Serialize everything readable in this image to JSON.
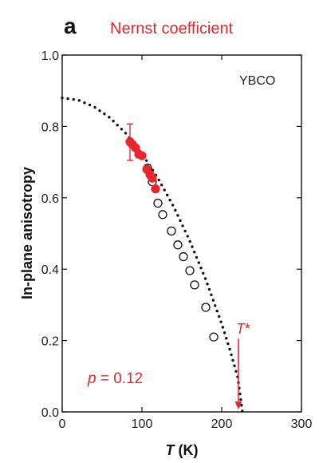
{
  "panel_label": "a",
  "title": "Nernst coefficient",
  "material_label": "YBCO",
  "doping_label": {
    "symbol": "p",
    "rest": " = 0.12"
  },
  "tstar_label": {
    "symbol": "T",
    "suffix": "*"
  },
  "xlabel": {
    "symbol": "T",
    "unit": " (K)"
  },
  "ylabel": "In-plane anisotropy",
  "colors": {
    "accent": "#e8262b",
    "axis": "#111111"
  },
  "chart_data": {
    "type": "scatter",
    "xlim": [
      0,
      300
    ],
    "ylim": [
      0.0,
      1.0
    ],
    "x_ticks": [
      0,
      100,
      200,
      300
    ],
    "x_tick_labels": [
      "0",
      "100",
      "200",
      "300"
    ],
    "y_ticks": [
      0.0,
      0.2,
      0.4,
      0.6,
      0.8,
      1.0
    ],
    "y_tick_labels": [
      "0.0",
      "0.2",
      "0.4",
      "0.6",
      "0.8",
      "1.0"
    ],
    "grid": false,
    "series": [
      {
        "style": "red-filled-circles",
        "x": [
          85,
          88,
          92,
          96,
          100,
          106,
          110,
          113,
          117
        ],
        "y": [
          0.757,
          0.75,
          0.74,
          0.722,
          0.718,
          0.68,
          0.665,
          0.655,
          0.625
        ]
      },
      {
        "style": "open-circles",
        "x": [
          107,
          113,
          120,
          126,
          137,
          145,
          152,
          160,
          166,
          180,
          190
        ],
        "y": [
          0.683,
          0.645,
          0.585,
          0.553,
          0.507,
          0.468,
          0.435,
          0.396,
          0.356,
          0.293,
          0.21
        ]
      },
      {
        "style": "dotted-line",
        "x": [
          0,
          20,
          40,
          60,
          80,
          100,
          120,
          140,
          160,
          180,
          200,
          210,
          220,
          226
        ],
        "y": [
          0.88,
          0.874,
          0.855,
          0.824,
          0.78,
          0.724,
          0.655,
          0.574,
          0.479,
          0.371,
          0.247,
          0.176,
          0.098,
          0.0
        ]
      }
    ],
    "errorbar": {
      "x": 85,
      "y": 0.757,
      "ylow": 0.705,
      "yhigh": 0.807
    },
    "arrow": {
      "x": 221,
      "y_start": 0.205,
      "y_end": 0.0
    }
  }
}
